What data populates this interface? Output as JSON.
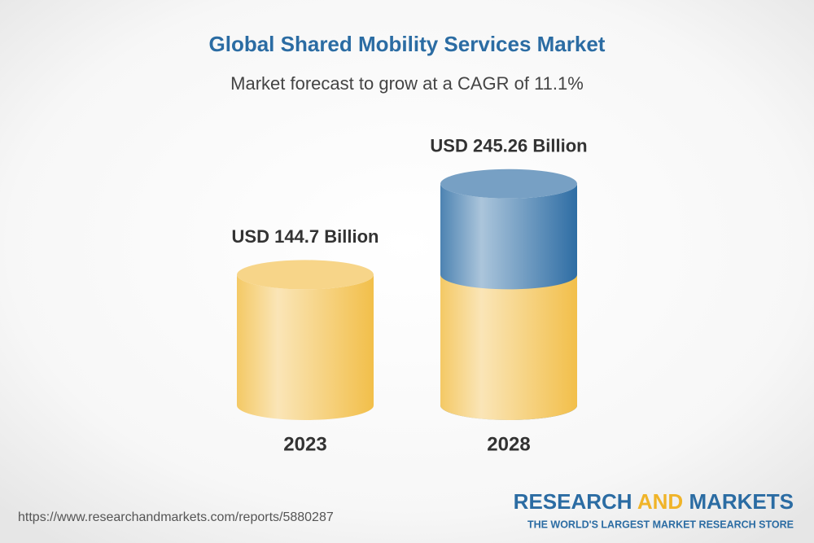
{
  "chart_data": {
    "type": "bar",
    "title": "Global Shared Mobility Services Market",
    "subtitle": "Market forecast to grow at a CAGR of 11.1%",
    "categories": [
      "2023",
      "2028"
    ],
    "values": [
      144.7,
      245.26
    ],
    "value_labels": [
      "USD 144.7 Billion",
      "USD 245.26 Billion"
    ],
    "colors": [
      "#f2bf4a",
      "#2e6da4"
    ]
  },
  "footer": {
    "url": "https://www.researchandmarkets.com/reports/5880287",
    "brand": [
      "RESEARCH",
      "AND",
      "MARKETS"
    ],
    "tagline": "THE WORLD'S LARGEST MARKET RESEARCH STORE"
  }
}
